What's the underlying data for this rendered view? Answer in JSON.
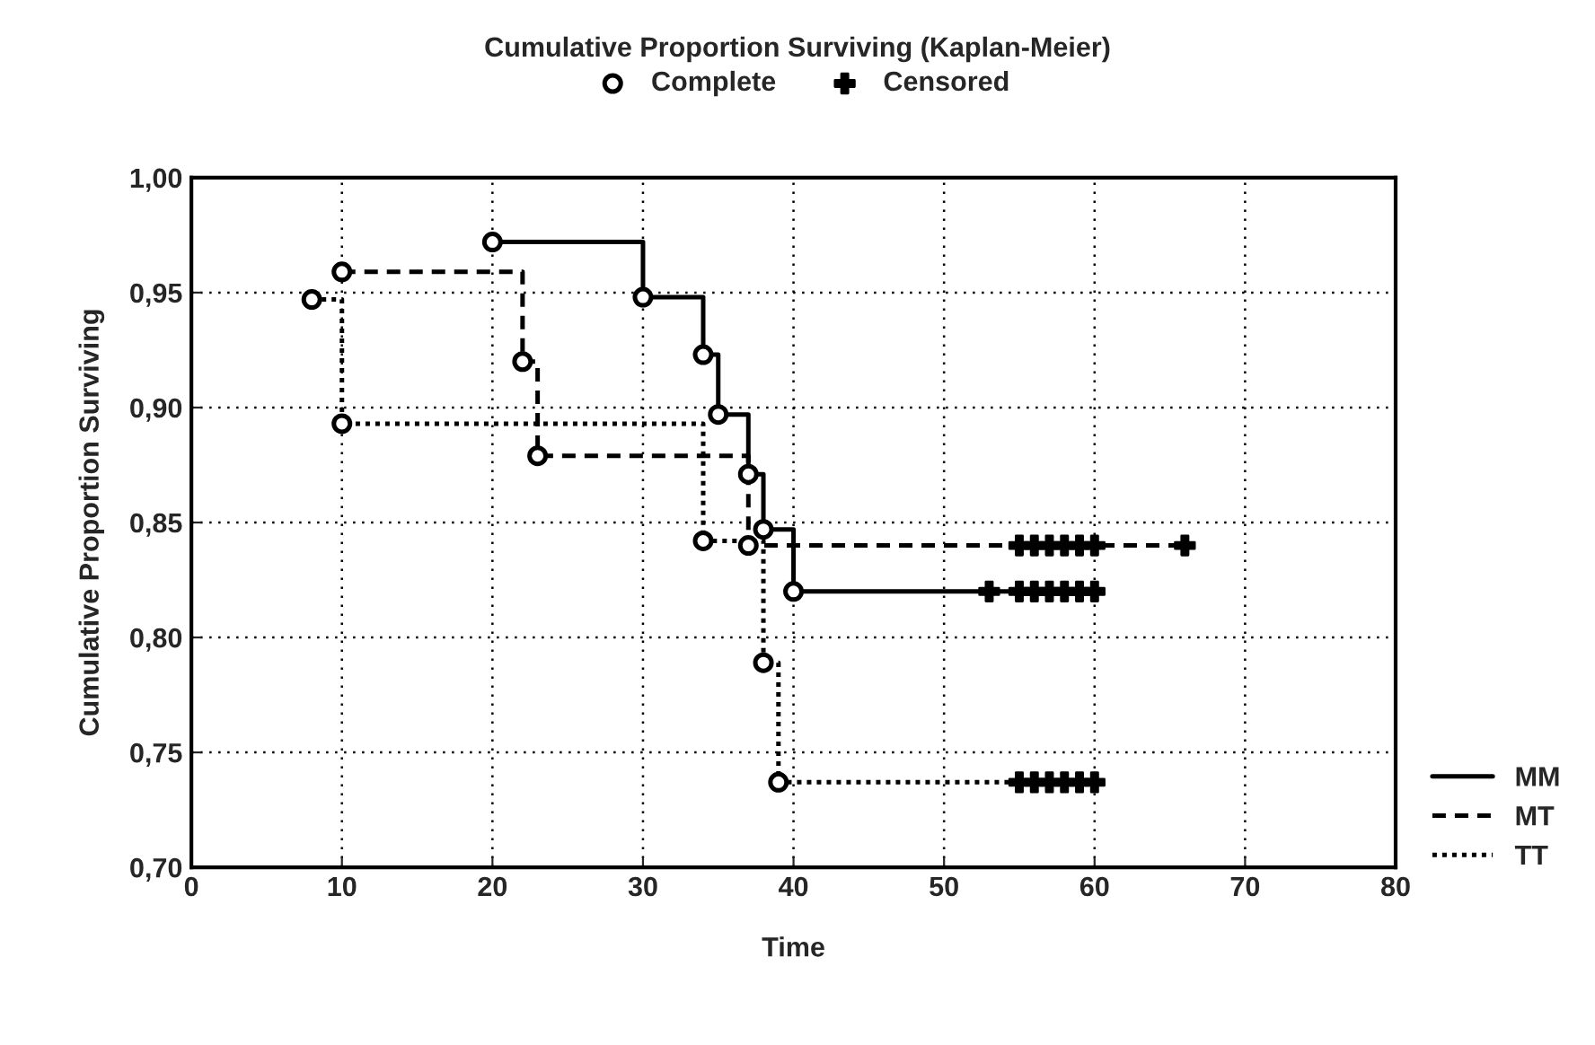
{
  "chart_data": {
    "type": "step",
    "title": "Cumulative Proportion Surviving (Kaplan-Meier)",
    "xlabel": "Time",
    "ylabel": "Cumulative Proportion Surviving",
    "xlim": [
      0,
      80
    ],
    "xticks": [
      0,
      10,
      20,
      30,
      40,
      50,
      60,
      70,
      80
    ],
    "ylim": [
      0.7,
      1.0
    ],
    "yticks": [
      {
        "value": 0.7,
        "label": "0,70"
      },
      {
        "value": 0.75,
        "label": "0,75"
      },
      {
        "value": 0.8,
        "label": "0,80"
      },
      {
        "value": 0.85,
        "label": "0,85"
      },
      {
        "value": 0.9,
        "label": "0,90"
      },
      {
        "value": 0.95,
        "label": "0,95"
      },
      {
        "value": 1.0,
        "label": "1,00"
      }
    ],
    "grid": true,
    "legend": "top",
    "series": [
      {
        "name": "MM",
        "color": "#000000",
        "line_style": "solid",
        "x": [
          20,
          30,
          34,
          35,
          37,
          38,
          40,
          60
        ],
        "values": [
          0.972,
          0.948,
          0.923,
          0.897,
          0.871,
          0.847,
          0.82,
          0.82
        ]
      },
      {
        "name": "MT",
        "color": "#000000",
        "line_style": "dashed",
        "x": [
          10,
          22,
          23,
          37,
          66
        ],
        "values": [
          0.959,
          0.92,
          0.879,
          0.84,
          0.84
        ]
      },
      {
        "name": "TT",
        "color": "#000000",
        "line_style": "dotted",
        "x": [
          8,
          10,
          34,
          38,
          39,
          60
        ],
        "values": [
          0.947,
          0.893,
          0.842,
          0.789,
          0.737,
          0.737
        ]
      },
      {
        "name": "Complete",
        "type": "scatter",
        "marker": "circle",
        "color": "#000000",
        "x": [
          20,
          30,
          34,
          35,
          37,
          38,
          40,
          10,
          22,
          23,
          37,
          8,
          10,
          34,
          38,
          39
        ],
        "values": [
          0.972,
          0.948,
          0.923,
          0.897,
          0.871,
          0.847,
          0.82,
          0.959,
          0.92,
          0.879,
          0.84,
          0.947,
          0.893,
          0.842,
          0.789,
          0.737
        ]
      },
      {
        "name": "Censored",
        "type": "scatter",
        "marker": "cross",
        "color": "#000000",
        "x": [
          53,
          55,
          56,
          57,
          58,
          59,
          60,
          55,
          56,
          57,
          58,
          59,
          60,
          66,
          55,
          56,
          57,
          58,
          59,
          60
        ],
        "values": [
          0.82,
          0.82,
          0.82,
          0.82,
          0.82,
          0.82,
          0.82,
          0.84,
          0.84,
          0.84,
          0.84,
          0.84,
          0.84,
          0.84,
          0.737,
          0.737,
          0.737,
          0.737,
          0.737,
          0.737
        ]
      }
    ]
  }
}
